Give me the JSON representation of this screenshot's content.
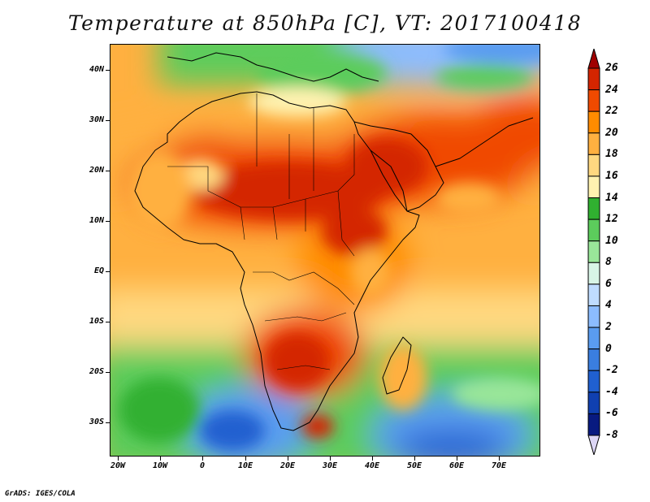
{
  "title": "Temperature at 850hPa [C], VT: 2017100418",
  "credit": "GrADS: IGES/COLA",
  "map": {
    "lat_labels": [
      "40N",
      "30N",
      "20N",
      "10N",
      "EQ",
      "10S",
      "20S",
      "30S"
    ],
    "lon_labels": [
      "20W",
      "10W",
      "0",
      "10E",
      "20E",
      "30E",
      "40E",
      "50E",
      "60E",
      "70E"
    ],
    "lat_range": [
      -37,
      45
    ],
    "lon_range": [
      -21,
      80
    ]
  },
  "colorbar": {
    "levels": [
      "26",
      "24",
      "22",
      "20",
      "18",
      "16",
      "14",
      "12",
      "10",
      "8",
      "6",
      "4",
      "2",
      "0",
      "-2",
      "-4",
      "-6",
      "-8"
    ],
    "colors": [
      "#a00000",
      "#d42500",
      "#f04a00",
      "#ff8c00",
      "#ffb040",
      "#ffd880",
      "#fff2b0",
      "#30b030",
      "#5ccc5c",
      "#99e699",
      "#d8f5e6",
      "#bfdcff",
      "#8cbcff",
      "#5a9cf0",
      "#3a7ee0",
      "#2060d0",
      "#1040b0",
      "#081a80",
      "#dcd6f5"
    ]
  }
}
